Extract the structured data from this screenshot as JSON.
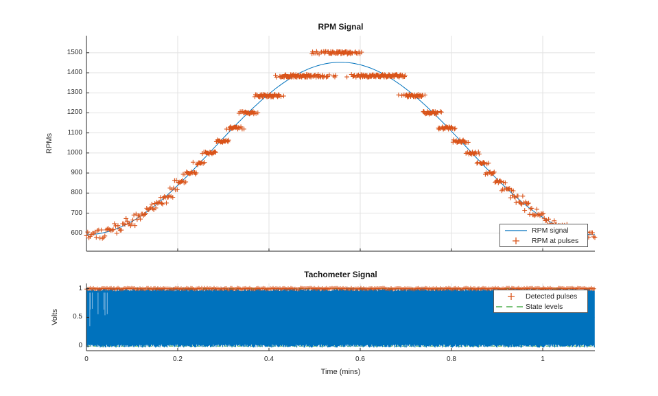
{
  "figure": {
    "background": "#ffffff"
  },
  "palette": {
    "signal_blue": "#0072BD",
    "pulse_orange": "#D95319",
    "state_green": "#2CA02C",
    "grid_gray": "#E2E2E2",
    "axis_dark": "#262626"
  },
  "chart_data": [
    {
      "type": "line+scatter",
      "title": "RPM Signal",
      "xlabel": "",
      "ylabel": "RPMs",
      "xlim": [
        0,
        1.1143
      ],
      "ylim": [
        510,
        1585
      ],
      "xticks": [
        0,
        0.2,
        0.4,
        0.6,
        0.8,
        1
      ],
      "xtick_labels_shown": false,
      "yticks": [
        600,
        700,
        800,
        900,
        1000,
        1100,
        1200,
        1300,
        1400,
        1500
      ],
      "grid": true,
      "series": [
        {
          "name": "RPM signal",
          "type": "line",
          "color": "#0072BD",
          "model": {
            "kind": "raised-cosine",
            "base_rpm": 1022.5,
            "amplitude_rpm": 430,
            "period_mins": 1.114
          },
          "points": [
            [
              0.0,
              593
            ],
            [
              0.056,
              614
            ],
            [
              0.111,
              675
            ],
            [
              0.167,
              770
            ],
            [
              0.223,
              890
            ],
            [
              0.279,
              1023
            ],
            [
              0.334,
              1155
            ],
            [
              0.39,
              1275
            ],
            [
              0.446,
              1370
            ],
            [
              0.501,
              1432
            ],
            [
              0.557,
              1453
            ],
            [
              0.613,
              1432
            ],
            [
              0.668,
              1370
            ],
            [
              0.724,
              1275
            ],
            [
              0.78,
              1155
            ],
            [
              0.836,
              1023
            ],
            [
              0.891,
              890
            ],
            [
              0.947,
              770
            ],
            [
              1.003,
              675
            ],
            [
              1.058,
              614
            ],
            [
              1.114,
              593
            ]
          ]
        },
        {
          "name": "RPM at pulses",
          "type": "scatter",
          "marker": "+",
          "color": "#D95319",
          "quantization": {
            "rpm_constant": 18000,
            "divisor_min": 12,
            "divisor_max": 31
          },
          "quantized_levels": [
            1500,
            1384.6,
            1285.7,
            1200,
            1125,
            1058.8,
            1000,
            947.4,
            900,
            857.1,
            818.2,
            782.6,
            750,
            720,
            692.3,
            666.7,
            642.9,
            620.7,
            600,
            580.6
          ],
          "approx_pulse_count": 700
        }
      ],
      "legend": {
        "location": "southeast",
        "entries": [
          {
            "label": "RPM signal",
            "swatch": "line",
            "color": "#0072BD"
          },
          {
            "label": "RPM at pulses",
            "swatch": "plus",
            "color": "#D95319"
          }
        ]
      }
    },
    {
      "type": "line",
      "title": "Tachometer Signal",
      "xlabel": "Time (mins)",
      "ylabel": "Volts",
      "xlim": [
        0,
        1.1143
      ],
      "ylim": [
        -0.08,
        1.09
      ],
      "xticks": [
        0,
        0.2,
        0.4,
        0.6,
        0.8,
        1
      ],
      "xtick_labels_shown": true,
      "yticks": [
        0,
        0.5,
        1
      ],
      "grid": true,
      "series": [
        {
          "name": "Tachometer signal",
          "type": "pulse-train",
          "color": "#0072BD",
          "low_volts": 0,
          "high_volts": 1,
          "description": "Dense 0-1 V bilevel tachometer pulse train spanning the full time range; aliases to a solid blue band with ragged edges"
        },
        {
          "name": "Detected pulses",
          "type": "scatter",
          "marker": "+",
          "color": "#D95319",
          "y_volts": 1
        },
        {
          "name": "State levels",
          "type": "dashed-line",
          "color": "#2CA02C",
          "levels_volts": [
            0,
            1
          ]
        }
      ],
      "legend": {
        "location": "northeast",
        "entries": [
          {
            "label": "Detected pulses",
            "swatch": "plus",
            "color": "#D95319"
          },
          {
            "label": "State levels",
            "swatch": "dashes",
            "color": "#2CA02C"
          }
        ]
      }
    }
  ]
}
